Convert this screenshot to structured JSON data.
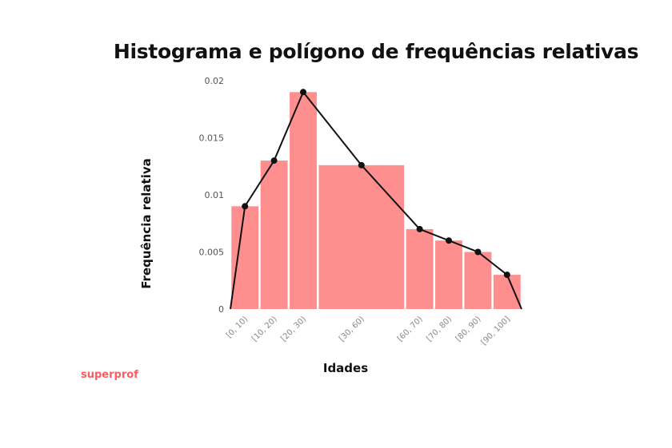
{
  "brand": {
    "logo_text": "superprof"
  },
  "chart_data": {
    "type": "bar",
    "title": "Histograma e polígono de frequências relativas",
    "xlabel": "Idades",
    "ylabel": "Frequência relativa",
    "ylim": [
      0,
      0.02
    ],
    "grid": false,
    "colors": {
      "bar": "#ff8f8f",
      "line": "#111111"
    },
    "yticks": [
      {
        "value": 0,
        "label": "0"
      },
      {
        "value": 0.005,
        "label": "0.005"
      },
      {
        "value": 0.01,
        "label": "0.01"
      },
      {
        "value": 0.015,
        "label": "0.015"
      },
      {
        "value": 0.02,
        "label": "0.02"
      }
    ],
    "categories": [
      "[0, 10)",
      "[10, 20)",
      "[20, 30)",
      "[30, 60)",
      "[60, 70)",
      "[70, 80)",
      "[80, 90)",
      "[90, 100]"
    ],
    "bins": [
      {
        "label": "[0, 10)",
        "start": 0,
        "end": 10,
        "value": 0.009
      },
      {
        "label": "[10, 20)",
        "start": 10,
        "end": 20,
        "value": 0.013
      },
      {
        "label": "[20, 30)",
        "start": 20,
        "end": 30,
        "value": 0.019
      },
      {
        "label": "[30, 60)",
        "start": 30,
        "end": 60,
        "value": 0.0126
      },
      {
        "label": "[60, 70)",
        "start": 60,
        "end": 70,
        "value": 0.007
      },
      {
        "label": "[70, 80)",
        "start": 70,
        "end": 80,
        "value": 0.006
      },
      {
        "label": "[80, 90)",
        "start": 80,
        "end": 90,
        "value": 0.005
      },
      {
        "label": "[90, 100]",
        "start": 90,
        "end": 100,
        "value": 0.003
      }
    ],
    "polygon": {
      "x": [
        0,
        5,
        15,
        25,
        45,
        65,
        75,
        85,
        95,
        100
      ],
      "y": [
        0,
        0.009,
        0.013,
        0.019,
        0.0126,
        0.007,
        0.006,
        0.005,
        0.003,
        0
      ]
    }
  }
}
